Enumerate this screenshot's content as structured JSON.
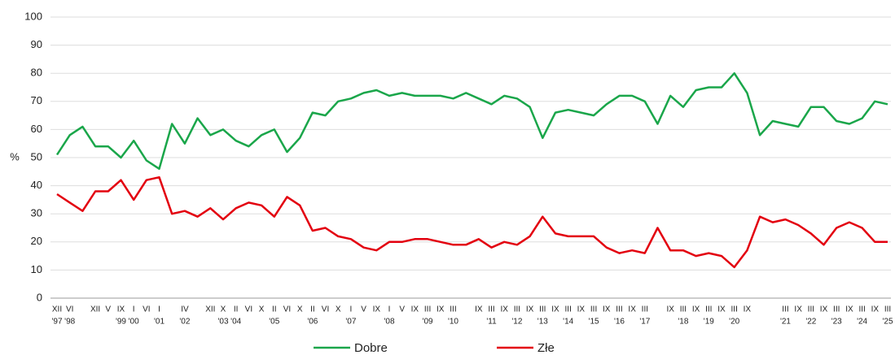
{
  "chart_data": {
    "type": "line",
    "y_label": "%",
    "categories": [
      "XII",
      "VI",
      null,
      "XII",
      "V",
      "IX",
      "I",
      "VI",
      "I",
      null,
      "IV",
      null,
      "XII",
      "X",
      "II",
      "VI",
      "X",
      "II",
      "VI",
      "X",
      "II",
      "VI",
      "X",
      "I",
      "V",
      "IX",
      "I",
      "V",
      "IX",
      "III",
      "IX",
      "III",
      null,
      "IX",
      "III",
      "IX",
      "III",
      "IX",
      "III",
      "IX",
      "III",
      "IX",
      "III",
      "IX",
      "III",
      "IX",
      "III",
      null,
      "IX",
      "III",
      "IX",
      "III",
      "IX",
      "III",
      "IX",
      null,
      null,
      "III",
      "IX",
      "III",
      "IX",
      "III",
      "IX",
      "III",
      "IX",
      "III"
    ],
    "category_years": [
      "'97",
      "'98",
      null,
      null,
      null,
      "'99",
      "'00",
      null,
      "'01",
      null,
      "'02",
      null,
      null,
      "'03",
      "'04",
      null,
      null,
      "'05",
      null,
      null,
      "'06",
      null,
      null,
      "'07",
      null,
      null,
      "'08",
      null,
      null,
      "'09",
      null,
      "'10",
      null,
      null,
      "'11",
      null,
      "'12",
      null,
      "'13",
      null,
      "'14",
      null,
      "'15",
      null,
      "'16",
      null,
      "'17",
      null,
      null,
      "'18",
      null,
      "'19",
      null,
      "'20",
      null,
      null,
      null,
      "'21",
      null,
      "'22",
      null,
      "'23",
      null,
      "'24",
      null,
      "'25"
    ],
    "series": [
      {
        "name": "Dobre",
        "color": "#1aa64a",
        "values": [
          51,
          58,
          61,
          54,
          54,
          50,
          56,
          49,
          46,
          62,
          55,
          64,
          58,
          60,
          56,
          54,
          58,
          60,
          52,
          57,
          66,
          65,
          70,
          71,
          73,
          74,
          72,
          73,
          72,
          72,
          72,
          71,
          73,
          71,
          69,
          72,
          71,
          68,
          57,
          66,
          67,
          66,
          65,
          69,
          72,
          72,
          70,
          62,
          72,
          68,
          74,
          75,
          75,
          80,
          73,
          58,
          63,
          62,
          61,
          68,
          68,
          63,
          62,
          64,
          70,
          69
        ]
      },
      {
        "name": "Złe",
        "color": "#e3000f",
        "values": [
          37,
          34,
          31,
          38,
          38,
          42,
          35,
          42,
          43,
          30,
          31,
          29,
          32,
          28,
          32,
          34,
          33,
          29,
          36,
          33,
          24,
          25,
          22,
          21,
          18,
          17,
          20,
          20,
          21,
          21,
          20,
          19,
          19,
          21,
          18,
          20,
          19,
          22,
          29,
          23,
          22,
          22,
          22,
          18,
          16,
          17,
          16,
          25,
          17,
          17,
          15,
          16,
          15,
          11,
          17,
          29,
          27,
          28,
          26,
          23,
          19,
          25,
          27,
          25,
          20,
          20
        ]
      }
    ],
    "ylim": [
      0,
      100
    ],
    "yticks": [
      0,
      10,
      20,
      30,
      40,
      50,
      60,
      70,
      80,
      90,
      100
    ],
    "grid": true,
    "legend": "bottom"
  }
}
